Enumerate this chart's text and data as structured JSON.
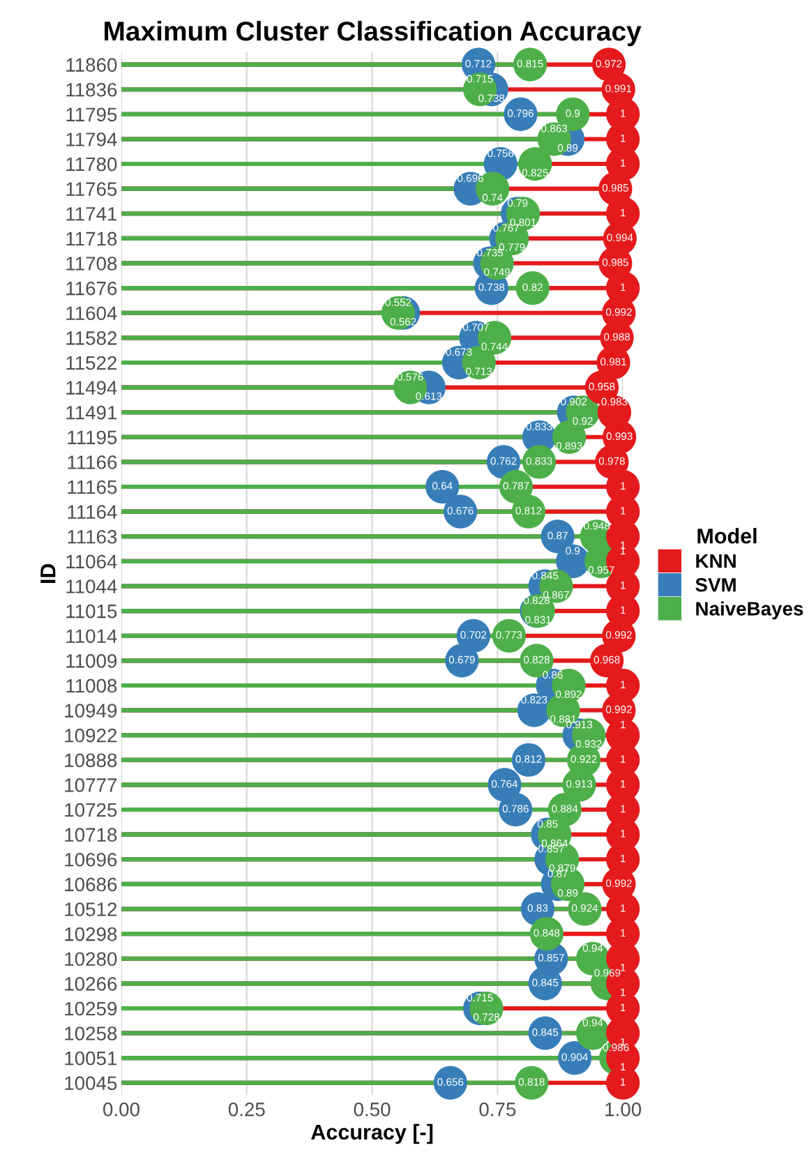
{
  "chart_data": {
    "type": "lollipop",
    "orientation": "horizontal",
    "title": "Maximum Cluster Classification Accuracy",
    "xlabel": "Accuracy [-]",
    "ylabel": "ID",
    "legend_title": "Model",
    "legend": "right",
    "grid": "x",
    "data_labels": true,
    "marker": "circle",
    "xlim": [
      0,
      1
    ],
    "xticks": [
      {
        "value": 0,
        "label": "0.00"
      },
      {
        "value": 0.25,
        "label": "0.25"
      },
      {
        "value": 0.5,
        "label": "0.50"
      },
      {
        "value": 0.75,
        "label": "0.75"
      },
      {
        "value": 1,
        "label": "1.00"
      }
    ],
    "categories": [
      "11860",
      "11836",
      "11795",
      "11794",
      "11780",
      "11765",
      "11741",
      "11718",
      "11708",
      "11676",
      "11604",
      "11582",
      "11522",
      "11494",
      "11491",
      "11195",
      "11166",
      "11165",
      "11164",
      "11163",
      "11064",
      "11044",
      "11015",
      "11014",
      "11009",
      "11008",
      "10949",
      "10922",
      "10888",
      "10777",
      "10725",
      "10718",
      "10696",
      "10686",
      "10512",
      "10298",
      "10280",
      "10266",
      "10259",
      "10258",
      "10051",
      "10045"
    ],
    "series": [
      {
        "name": "KNN",
        "color": "#e41a1c",
        "values": [
          0.972,
          0.991,
          1,
          1,
          1,
          0.985,
          1,
          0.994,
          0.985,
          1,
          0.992,
          0.988,
          0.981,
          0.958,
          0.983,
          0.993,
          0.978,
          1,
          1,
          1,
          1,
          1,
          1,
          0.992,
          0.968,
          1,
          0.992,
          1,
          1,
          1,
          1,
          1,
          1,
          0.992,
          1,
          1,
          1,
          1,
          1,
          1,
          1,
          1
        ]
      },
      {
        "name": "SVM",
        "color": "#377eb8",
        "values": [
          0.712,
          0.738,
          0.796,
          0.89,
          0.756,
          0.696,
          0.79,
          0.767,
          0.735,
          0.738,
          0.562,
          0.707,
          0.673,
          0.613,
          0.902,
          0.833,
          0.762,
          0.64,
          0.676,
          0.87,
          0.9,
          0.845,
          0.828,
          0.702,
          0.679,
          0.86,
          0.823,
          0.913,
          0.812,
          0.764,
          0.786,
          0.85,
          0.857,
          0.87,
          0.83,
          null,
          0.857,
          0.845,
          0.715,
          0.845,
          0.904,
          0.656
        ]
      },
      {
        "name": "NaiveBayes",
        "color": "#4daf4a",
        "values": [
          0.815,
          0.715,
          0.9,
          0.863,
          0.825,
          0.74,
          0.801,
          0.779,
          0.749,
          0.82,
          0.552,
          0.744,
          0.713,
          0.576,
          0.92,
          0.893,
          0.833,
          0.787,
          0.812,
          0.948,
          0.957,
          0.867,
          0.831,
          0.773,
          0.828,
          0.892,
          0.881,
          0.932,
          0.922,
          0.913,
          0.884,
          0.864,
          0.879,
          0.89,
          0.924,
          0.848,
          0.94,
          0.969,
          0.728,
          0.94,
          0.986,
          0.818
        ]
      }
    ]
  }
}
